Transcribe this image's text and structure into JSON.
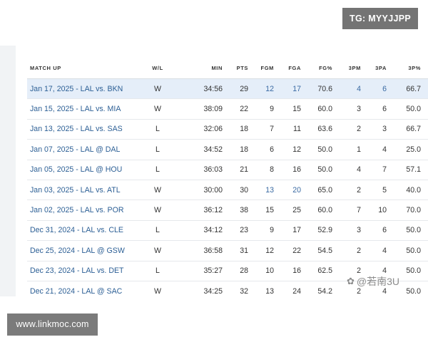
{
  "watermarks": {
    "top_right": "TG: MYYJJPP",
    "bottom_left": "www.linkmoc.com",
    "overlay": "@若南3U"
  },
  "table": {
    "columns": [
      "MATCH UP",
      "W/L",
      "MIN",
      "PTS",
      "FGM",
      "FGA",
      "FG%",
      "3PM",
      "3PA",
      "3P%"
    ],
    "rows": [
      {
        "match_up": "Jan 17, 2025 - LAL vs. BKN",
        "wl": "W",
        "min": "34:56",
        "pts": "29",
        "fgm": "12",
        "fga": "17",
        "fg_pct": "70.6",
        "three_pm": "4",
        "three_pa": "6",
        "three_pct": "66.7"
      },
      {
        "match_up": "Jan 15, 2025 - LAL vs. MIA",
        "wl": "W",
        "min": "38:09",
        "pts": "22",
        "fgm": "9",
        "fga": "15",
        "fg_pct": "60.0",
        "three_pm": "3",
        "three_pa": "6",
        "three_pct": "50.0"
      },
      {
        "match_up": "Jan 13, 2025 - LAL vs. SAS",
        "wl": "L",
        "min": "32:06",
        "pts": "18",
        "fgm": "7",
        "fga": "11",
        "fg_pct": "63.6",
        "three_pm": "2",
        "three_pa": "3",
        "three_pct": "66.7"
      },
      {
        "match_up": "Jan 07, 2025 - LAL @ DAL",
        "wl": "L",
        "min": "34:52",
        "pts": "18",
        "fgm": "6",
        "fga": "12",
        "fg_pct": "50.0",
        "three_pm": "1",
        "three_pa": "4",
        "three_pct": "25.0"
      },
      {
        "match_up": "Jan 05, 2025 - LAL @ HOU",
        "wl": "L",
        "min": "36:03",
        "pts": "21",
        "fgm": "8",
        "fga": "16",
        "fg_pct": "50.0",
        "three_pm": "4",
        "three_pa": "7",
        "three_pct": "57.1"
      },
      {
        "match_up": "Jan 03, 2025 - LAL vs. ATL",
        "wl": "W",
        "min": "30:00",
        "pts": "30",
        "fgm": "13",
        "fga": "20",
        "fg_pct": "65.0",
        "three_pm": "2",
        "three_pa": "5",
        "three_pct": "40.0"
      },
      {
        "match_up": "Jan 02, 2025 - LAL vs. POR",
        "wl": "W",
        "min": "36:12",
        "pts": "38",
        "fgm": "15",
        "fga": "25",
        "fg_pct": "60.0",
        "three_pm": "7",
        "three_pa": "10",
        "three_pct": "70.0"
      },
      {
        "match_up": "Dec 31, 2024 - LAL vs. CLE",
        "wl": "L",
        "min": "34:12",
        "pts": "23",
        "fgm": "9",
        "fga": "17",
        "fg_pct": "52.9",
        "three_pm": "3",
        "three_pa": "6",
        "three_pct": "50.0"
      },
      {
        "match_up": "Dec 25, 2024 - LAL @ GSW",
        "wl": "W",
        "min": "36:58",
        "pts": "31",
        "fgm": "12",
        "fga": "22",
        "fg_pct": "54.5",
        "three_pm": "2",
        "three_pa": "4",
        "three_pct": "50.0"
      },
      {
        "match_up": "Dec 23, 2024 - LAL vs. DET",
        "wl": "L",
        "min": "35:27",
        "pts": "28",
        "fgm": "10",
        "fga": "16",
        "fg_pct": "62.5",
        "three_pm": "2",
        "three_pa": "4",
        "three_pct": "50.0"
      },
      {
        "match_up": "Dec 21, 2024 - LAL @ SAC",
        "wl": "W",
        "min": "34:25",
        "pts": "32",
        "fgm": "13",
        "fga": "24",
        "fg_pct": "54.2",
        "three_pm": "2",
        "three_pa": "4",
        "three_pct": "50.0"
      }
    ]
  },
  "colors": {
    "highlight_row": "#e5eef9",
    "link": "#2c5f95",
    "watermark_bg": "#747474"
  }
}
